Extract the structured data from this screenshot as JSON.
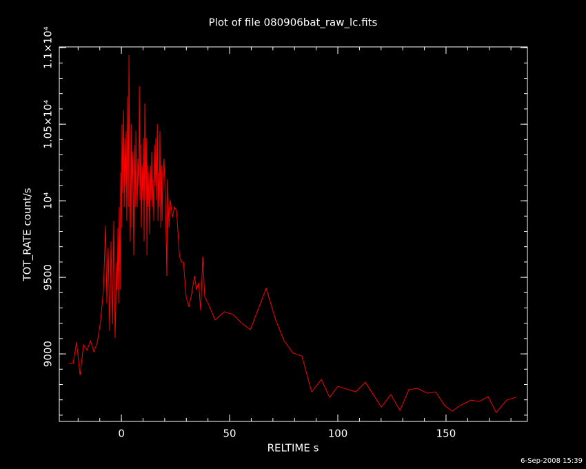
{
  "chart_data": {
    "type": "line",
    "title": "Plot of file 080906bat_raw_lc.fits",
    "xlabel": "RELTIME  s",
    "ylabel": "TOT_RATE  count/s",
    "footer": "6-Sep-2008 15:39",
    "color": "#ff0000",
    "axis_color": "#ffffff",
    "background": "#000000",
    "xlim": [
      -28.7,
      187.6
    ],
    "ylim": [
      8559,
      11005
    ],
    "xticks": [
      0,
      50,
      100,
      150
    ],
    "yticks": [
      9000,
      9500,
      {
        "value": 10000,
        "label": "10⁴"
      },
      {
        "value": 10500,
        "label": "1.05×10⁴"
      },
      {
        "value": 11000,
        "label": "1.1×10⁴"
      }
    ],
    "x": [
      -24.2,
      -22.3,
      -20.7,
      -19.1,
      -17.5,
      -15.9,
      -14.3,
      -12.7,
      -11.1,
      -9.6,
      -8.3,
      -7.3,
      -6.7,
      -6.1,
      -5.4,
      -4.8,
      -4.1,
      -3.5,
      -2.9,
      -2.2,
      -1.9,
      -1.6,
      -1.3,
      -1.0,
      -0.6,
      -0.3,
      0.0,
      0.3,
      0.6,
      1.0,
      1.3,
      1.6,
      1.9,
      2.2,
      2.5,
      2.9,
      3.2,
      3.5,
      3.8,
      4.1,
      4.5,
      4.8,
      5.1,
      5.4,
      5.7,
      6.1,
      6.4,
      6.7,
      7.0,
      7.3,
      7.6,
      8.0,
      8.3,
      8.6,
      8.9,
      9.2,
      9.6,
      9.9,
      10.2,
      10.5,
      10.8,
      11.1,
      11.5,
      11.8,
      12.1,
      12.4,
      12.7,
      13.1,
      13.4,
      13.7,
      14.0,
      14.3,
      14.6,
      15.0,
      15.3,
      15.6,
      15.9,
      16.2,
      16.6,
      16.9,
      17.2,
      17.5,
      17.8,
      18.2,
      18.5,
      18.8,
      19.1,
      19.7,
      20.4,
      21.0,
      21.3,
      22.0,
      22.6,
      23.6,
      24.5,
      25.5,
      26.8,
      27.7,
      28.7,
      29.9,
      31.2,
      32.5,
      33.8,
      34.7,
      35.7,
      36.6,
      37.6,
      38.5,
      40.1,
      43.3,
      47.5,
      51.6,
      55.4,
      59.6,
      66.9,
      71.3,
      75.2,
      79.3,
      83.4,
      87.9,
      92.4,
      96.2,
      100.0,
      108.3,
      112.7,
      120.1,
      124.5,
      128.7,
      132.8,
      136.6,
      141.4,
      145.2,
      149.4,
      152.9,
      156.4,
      161.5,
      165.3,
      169.4,
      173.2,
      178.0,
      182.2
    ],
    "values": [
      8937,
      8937,
      9077,
      8860,
      9059,
      9023,
      9086,
      9014,
      9077,
      9216,
      9419,
      9838,
      9329,
      9689,
      9149,
      9734,
      9194,
      9869,
      9104,
      9599,
      9419,
      9824,
      9329,
      9960,
      9419,
      10185,
      9824,
      10500,
      10050,
      10590,
      9960,
      10410,
      10095,
      10455,
      9869,
      10680,
      9960,
      10951,
      10185,
      9734,
      10500,
      9824,
      10320,
      10140,
      9644,
      10365,
      9960,
      10455,
      10140,
      9960,
      10275,
      10095,
      10748,
      10005,
      10365,
      9824,
      10230,
      10005,
      10410,
      9734,
      10635,
      10005,
      10410,
      9644,
      10230,
      9960,
      10185,
      9779,
      10230,
      10005,
      10320,
      9960,
      10140,
      9869,
      10365,
      10095,
      10410,
      10005,
      10500,
      9869,
      10185,
      9960,
      10455,
      9824,
      10230,
      9869,
      10140,
      10275,
      9960,
      9509,
      10140,
      9824,
      10005,
      9892,
      9960,
      9937,
      9644,
      9599,
      9599,
      9374,
      9306,
      9396,
      9509,
      9419,
      9464,
      9284,
      9635,
      9374,
      9329,
      9221,
      9275,
      9257,
      9203,
      9158,
      9428,
      9221,
      9086,
      9005,
      8986,
      8752,
      8833,
      8716,
      8788,
      8752,
      8815,
      8653,
      8734,
      8631,
      8766,
      8775,
      8743,
      8752,
      8662,
      8626,
      8662,
      8698,
      8689,
      8721,
      8617,
      8698,
      8716
    ]
  }
}
